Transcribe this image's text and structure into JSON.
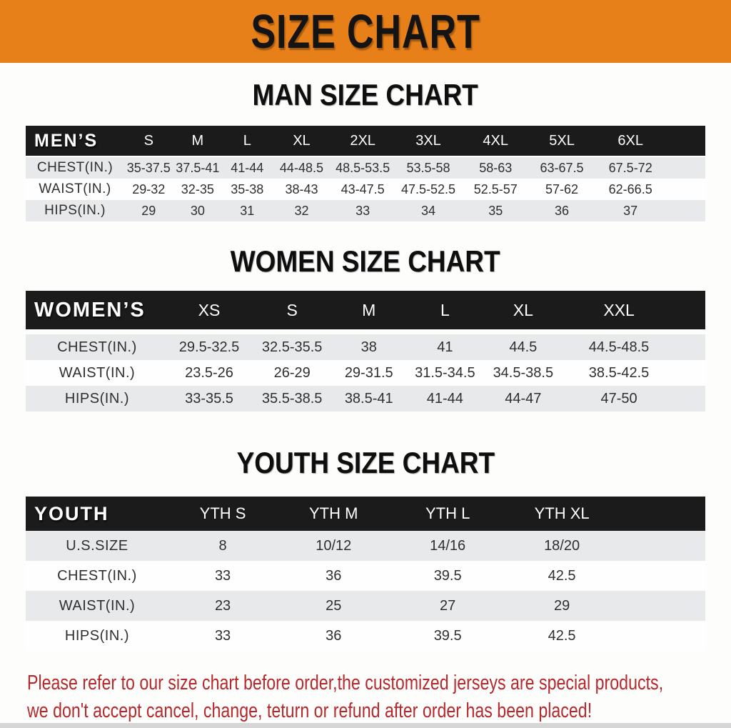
{
  "banner": {
    "title": "SIZE CHART"
  },
  "colors": {
    "banner_bg": "#e8801a",
    "banner_text": "#141414",
    "header_bg": "#1b1b1b",
    "header_text": "#ffffff",
    "row_alt_bg": "#e8e9eb",
    "row_bg": "#fefefe",
    "cell_text": "#2f2f2f",
    "note_text": "#b5282c"
  },
  "sections": [
    {
      "title": "MAN SIZE CHART",
      "table": {
        "label": "MEN’S",
        "sizes": [
          "S",
          "M",
          "L",
          "XL",
          "2XL",
          "3XL",
          "4XL",
          "5XL",
          "6XL"
        ],
        "rows": [
          {
            "label": "CHEST(IN.)",
            "values": [
              "35-37.5",
              "37.5-41",
              "41-44",
              "44-48.5",
              "48.5-53.5",
              "53.5-58",
              "58-63",
              "63-67.5",
              "67.5-72"
            ]
          },
          {
            "label": "WAIST(IN.)",
            "values": [
              "29-32",
              "32-35",
              "35-38",
              "38-43",
              "43-47.5",
              "47.5-52.5",
              "52.5-57",
              "57-62",
              "62-66.5"
            ]
          },
          {
            "label": "HIPS(IN.)",
            "values": [
              "29",
              "30",
              "31",
              "32",
              "33",
              "34",
              "35",
              "36",
              "37"
            ]
          }
        ]
      }
    },
    {
      "title": "WOMEN SIZE CHART",
      "table": {
        "label": "WOMEN’S",
        "sizes": [
          "XS",
          "S",
          "M",
          "L",
          "XL",
          "XXL"
        ],
        "rows": [
          {
            "label": "CHEST(IN.)",
            "values": [
              "29.5-32.5",
              "32.5-35.5",
              "38",
              "41",
              "44.5",
              "44.5-48.5"
            ]
          },
          {
            "label": "WAIST(IN.)",
            "values": [
              "23.5-26",
              "26-29",
              "29-31.5",
              "31.5-34.5",
              "34.5-38.5",
              "38.5-42.5"
            ]
          },
          {
            "label": "HIPS(IN.)",
            "values": [
              "33-35.5",
              "35.5-38.5",
              "38.5-41",
              "41-44",
              "44-47",
              "47-50"
            ]
          }
        ]
      }
    },
    {
      "title": "YOUTH SIZE CHART",
      "table": {
        "label": "YOUTH",
        "sizes": [
          "YTH S",
          "YTH M",
          "YTH L",
          "YTH XL"
        ],
        "rows": [
          {
            "label": "U.S.SIZE",
            "values": [
              "8",
              "10/12",
              "14/16",
              "18/20"
            ]
          },
          {
            "label": "CHEST(IN.)",
            "values": [
              "33",
              "36",
              "39.5",
              "42.5"
            ]
          },
          {
            "label": "WAIST(IN.)",
            "values": [
              "23",
              "25",
              "27",
              "29"
            ]
          },
          {
            "label": "HIPS(IN.)",
            "values": [
              "33",
              "36",
              "39.5",
              "42.5"
            ]
          }
        ]
      }
    }
  ],
  "footer_note": {
    "line1": "Please refer to our size chart before order,the customized jerseys are special products,",
    "line2": "we don't accept cancel, change, teturn or refund after order has been placed!"
  }
}
